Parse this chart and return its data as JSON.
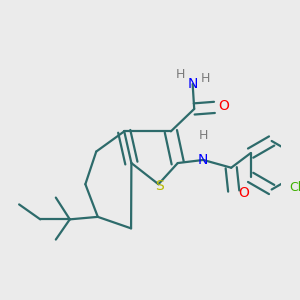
{
  "bg_color": "#ebebeb",
  "atom_colors": {
    "S": "#b8b800",
    "N": "#0000ff",
    "O": "#ff0000",
    "Cl": "#3cb000",
    "C": "#2d6b6b",
    "H": "#7a7a7a"
  },
  "bond_color": "#2d6b6b",
  "bond_width": 1.6,
  "dbo": 0.018
}
